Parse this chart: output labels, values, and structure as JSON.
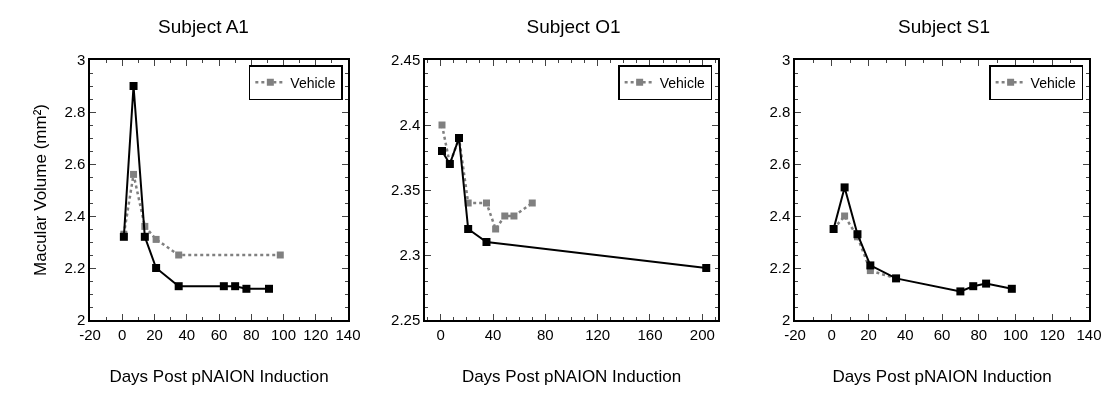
{
  "chart_data": [
    {
      "type": "line",
      "title": "Subject A1",
      "xlabel": "Days Post pNAION Induction",
      "ylabel": "Macular Volume (mm²)",
      "xlim": [
        -20,
        140
      ],
      "xticks": [
        -20,
        0,
        20,
        40,
        60,
        80,
        100,
        120,
        140
      ],
      "ylim": [
        2,
        3
      ],
      "yticks": [
        2,
        2.2,
        2.4,
        2.6,
        2.8,
        3
      ],
      "grid": false,
      "legend": "top right",
      "series": [
        {
          "color": "#000000",
          "marker": "square",
          "line_style": "solid",
          "x": [
            1,
            7,
            14,
            21,
            35,
            63,
            70,
            77,
            91
          ],
          "values": [
            2.32,
            2.9,
            2.32,
            2.2,
            2.13,
            2.13,
            2.13,
            2.12,
            2.12
          ]
        },
        {
          "name": "Vehicle",
          "color": "#808080",
          "marker": "square",
          "line_style": "dotted",
          "x": [
            1,
            7,
            14,
            21,
            35,
            98
          ],
          "values": [
            2.33,
            2.56,
            2.36,
            2.31,
            2.25,
            2.25
          ]
        }
      ]
    },
    {
      "type": "line",
      "title": "Subject O1",
      "xlabel": "Days Post pNAION Induction",
      "xlim": [
        -12,
        212
      ],
      "xticks": [
        0,
        40,
        80,
        120,
        160,
        200
      ],
      "ylim": [
        2.25,
        2.45
      ],
      "yticks": [
        2.25,
        2.3,
        2.35,
        2.4,
        2.45
      ],
      "grid": false,
      "legend": "top right",
      "series": [
        {
          "color": "#000000",
          "marker": "square",
          "line_style": "solid",
          "x": [
            1,
            7,
            14,
            21,
            35,
            203
          ],
          "values": [
            2.38,
            2.37,
            2.39,
            2.32,
            2.31,
            2.29
          ]
        },
        {
          "name": "Vehicle",
          "color": "#808080",
          "marker": "square",
          "line_style": "dotted",
          "x": [
            1,
            7,
            14,
            21,
            35,
            42,
            49,
            56,
            70
          ],
          "values": [
            2.4,
            2.37,
            2.39,
            2.34,
            2.34,
            2.32,
            2.33,
            2.33,
            2.34
          ]
        }
      ]
    },
    {
      "type": "line",
      "title": "Subject S1",
      "xlabel": "Days Post pNAION Induction",
      "xlim": [
        -20,
        140
      ],
      "xticks": [
        -20,
        0,
        20,
        40,
        60,
        80,
        100,
        120,
        140
      ],
      "ylim": [
        2,
        3
      ],
      "yticks": [
        2,
        2.2,
        2.4,
        2.6,
        2.8,
        3
      ],
      "grid": false,
      "legend": "top right",
      "series": [
        {
          "color": "#000000",
          "marker": "square",
          "line_style": "solid",
          "x": [
            1,
            7,
            14,
            21,
            35,
            70,
            77,
            84,
            98
          ],
          "values": [
            2.35,
            2.51,
            2.33,
            2.21,
            2.16,
            2.11,
            2.13,
            2.14,
            2.12
          ]
        },
        {
          "name": "Vehicle",
          "color": "#808080",
          "marker": "square",
          "line_style": "dotted",
          "x": [
            1,
            7,
            14,
            21,
            35
          ],
          "values": [
            2.35,
            2.4,
            2.32,
            2.19,
            2.16
          ]
        }
      ]
    }
  ]
}
